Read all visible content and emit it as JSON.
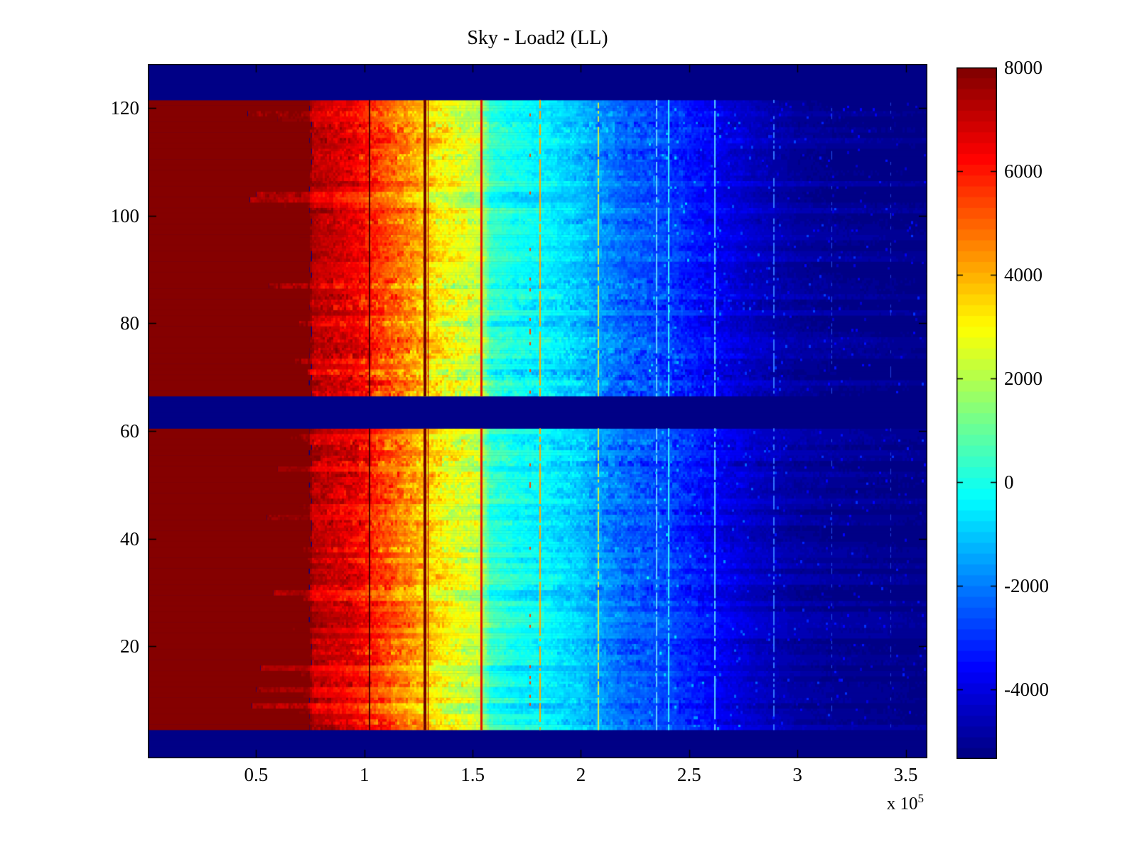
{
  "figure": {
    "background_color": "#ffffff",
    "axis_color": "#000000",
    "title_text": "Sky - Load2 (LL)"
  },
  "chart_data": {
    "type": "heatmap",
    "title": "Sky - Load2 (LL)",
    "colormap": "jet",
    "x_axis": {
      "ticks": [
        0.5,
        1,
        1.5,
        2,
        2.5,
        3,
        3.5
      ],
      "range": [
        0,
        3.6
      ],
      "scale_prefix": "x 10",
      "scale_exponent": "5"
    },
    "y_axis": {
      "ticks": [
        20,
        40,
        60,
        80,
        100,
        120
      ],
      "range": [
        -0.8,
        128.2
      ]
    },
    "colorbar": {
      "ticks": [
        8000,
        6000,
        4000,
        2000,
        0,
        -2000,
        -4000
      ],
      "vmax": 8000,
      "vmin": -5342,
      "levels": 64
    },
    "jet_stops": [
      [
        0.0,
        [
          0,
          0,
          134
        ]
      ],
      [
        0.125,
        [
          0,
          0,
          255
        ]
      ],
      [
        0.375,
        [
          0,
          255,
          255
        ]
      ],
      [
        0.625,
        [
          255,
          255,
          0
        ]
      ],
      [
        0.875,
        [
          255,
          0,
          0
        ]
      ],
      [
        1.0,
        [
          133,
          0,
          0
        ]
      ]
    ],
    "value_profile": {
      "x": [
        0,
        0.74,
        0.76,
        0.95,
        1.05,
        1.2,
        1.35,
        1.5,
        1.54,
        1.58,
        1.7,
        1.85,
        2.0,
        2.08,
        2.2,
        2.4,
        2.6,
        2.8,
        3.0,
        3.2,
        3.6
      ],
      "v": [
        8400,
        8400,
        7400,
        6800,
        6000,
        4800,
        3400,
        2600,
        2400,
        600,
        100,
        -300,
        -900,
        -1400,
        -2100,
        -2600,
        -3500,
        -4300,
        -4800,
        -5000,
        -5200
      ]
    },
    "noise_profile": {
      "x": [
        0,
        0.74,
        0.8,
        1.0,
        1.3,
        1.5,
        1.6,
        1.9,
        2.05,
        2.3,
        2.6,
        2.8,
        3.0,
        3.6
      ],
      "amp": [
        0,
        0,
        520,
        820,
        900,
        800,
        420,
        470,
        620,
        650,
        480,
        260,
        160,
        110
      ]
    },
    "blank_row_bands": [
      [
        121.4,
        128.2
      ],
      [
        60.9,
        66.7
      ],
      [
        -0.8,
        4.6
      ]
    ],
    "default_noise_onset": 0.75,
    "hot_rows": [
      {
        "row": 119,
        "onset": 0.46,
        "boost": 550
      },
      {
        "row": 118,
        "onset": 0.6,
        "boost": 420
      },
      {
        "row": 104,
        "onset": 0.5,
        "boost": 700
      },
      {
        "row": 103,
        "onset": 0.47,
        "boost": 820
      },
      {
        "row": 102,
        "onset": 0.62,
        "boost": 520
      },
      {
        "row": 96,
        "onset": 0.7,
        "boost": 420
      },
      {
        "row": 87,
        "onset": 0.56,
        "boost": 620
      },
      {
        "row": 80,
        "onset": 0.7,
        "boost": 520
      },
      {
        "row": 73,
        "onset": 0.68,
        "boost": 460
      },
      {
        "row": 71,
        "onset": 0.74,
        "boost": 620
      },
      {
        "row": 59,
        "onset": 0.66,
        "boost": 720
      },
      {
        "row": 58,
        "onset": 0.72,
        "boost": 420
      },
      {
        "row": 53,
        "onset": 0.6,
        "boost": 660
      },
      {
        "row": 46,
        "onset": 0.7,
        "boost": 520
      },
      {
        "row": 44,
        "onset": 0.55,
        "boost": 700
      },
      {
        "row": 38,
        "onset": 0.68,
        "boost": 520
      },
      {
        "row": 36,
        "onset": 0.74,
        "boost": 460
      },
      {
        "row": 30,
        "onset": 0.58,
        "boost": 700
      },
      {
        "row": 29,
        "onset": 0.72,
        "boost": 500
      },
      {
        "row": 23,
        "onset": 0.66,
        "boost": 560
      },
      {
        "row": 16,
        "onset": 0.52,
        "boost": 820
      },
      {
        "row": 15,
        "onset": 0.7,
        "boost": 620
      },
      {
        "row": 12,
        "onset": 0.5,
        "boost": 860
      },
      {
        "row": 11,
        "onset": 0.72,
        "boost": 600
      },
      {
        "row": 9,
        "onset": 0.48,
        "boost": 760
      },
      {
        "row": 8,
        "onset": 0.7,
        "boost": 660
      }
    ],
    "artifact_lines": [
      {
        "x": 1.025,
        "color": "#4a0000",
        "w": 2,
        "dash": 1
      },
      {
        "x": 1.28,
        "color": "#6f0000",
        "w": 4,
        "dash": 1
      },
      {
        "x": 1.295,
        "color": "#a80000",
        "w": 1,
        "dash": 1
      },
      {
        "x": 1.54,
        "color": "#e01000",
        "w": 3,
        "dash": 1
      },
      {
        "x": 1.765,
        "color": "#ff4000",
        "w": 2,
        "dash": 0.14
      },
      {
        "x": 1.81,
        "color": "#ffaa00",
        "w": 2,
        "dash": 0.9
      },
      {
        "x": 2.08,
        "color": "#cdee44",
        "w": 2,
        "dash": 0.9
      },
      {
        "x": 2.35,
        "color": "#66ccff",
        "w": 2,
        "dash": 0.8
      },
      {
        "x": 2.405,
        "color": "#33eeff",
        "w": 2,
        "dash": 0.9
      },
      {
        "x": 2.62,
        "color": "#55ccff",
        "w": 2,
        "dash": 0.85
      },
      {
        "x": 2.89,
        "color": "#3377ff",
        "w": 2,
        "dash": 0.6
      },
      {
        "x": 3.16,
        "color": "#2255ee",
        "w": 1,
        "dash": 0.3
      },
      {
        "x": 3.43,
        "color": "#2244dd",
        "w": 1,
        "dash": 0.25
      }
    ],
    "seed": 1337
  }
}
